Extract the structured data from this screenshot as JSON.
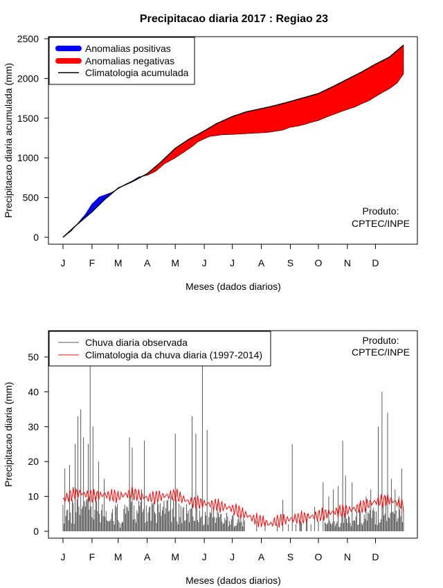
{
  "chart_data": [
    {
      "type": "area",
      "title": "Precipitacao diaria 2017 : Regiao 23",
      "xlabel": "Meses (dados diarios)",
      "ylabel": "Precipitacao diaria acumulada (mm)",
      "xlim": [
        1,
        365
      ],
      "ylim": [
        0,
        2500
      ],
      "xticks": {
        "positions": [
          1,
          32,
          60,
          91,
          121,
          152,
          182,
          213,
          244,
          274,
          305,
          335
        ],
        "labels": [
          "J",
          "F",
          "M",
          "A",
          "M",
          "J",
          "J",
          "A",
          "S",
          "O",
          "N",
          "D"
        ]
      },
      "yticks": [
        0,
        500,
        1000,
        1500,
        2000,
        2500
      ],
      "legend": {
        "position": "top-left",
        "items": [
          {
            "label": "Anomalias positivas",
            "color": "#0000ff",
            "kind": "thick"
          },
          {
            "label": "Anomalias negativas",
            "color": "#ff0000",
            "kind": "thick"
          },
          {
            "label": "Climatologia acumulada",
            "color": "#000000",
            "kind": "line"
          }
        ]
      },
      "annotation": [
        "Produto:",
        "CPTEC/INPE"
      ],
      "climatology_accumulated": {
        "days": [
          1,
          15,
          32,
          45,
          60,
          75,
          91,
          105,
          121,
          135,
          152,
          165,
          182,
          197,
          213,
          228,
          244,
          259,
          274,
          290,
          305,
          320,
          335,
          350,
          365
        ],
        "values": [
          0,
          150,
          320,
          470,
          620,
          700,
          800,
          940,
          1120,
          1230,
          1340,
          1430,
          1520,
          1580,
          1620,
          1660,
          1710,
          1760,
          1810,
          1900,
          1990,
          2080,
          2180,
          2270,
          2420
        ]
      },
      "observed_accumulated": {
        "days": [
          1,
          10,
          20,
          25,
          32,
          40,
          45,
          52,
          60,
          68,
          75,
          82,
          91,
          100,
          110,
          115,
          121,
          130,
          140,
          145,
          152,
          158,
          165,
          170,
          182,
          190,
          197,
          205,
          213,
          220,
          228,
          236,
          244,
          252,
          259,
          266,
          274,
          282,
          290,
          298,
          305,
          313,
          320,
          328,
          335,
          342,
          350,
          358,
          364,
          365
        ],
        "values": [
          0,
          80,
          220,
          290,
          420,
          510,
          530,
          560,
          610,
          670,
          710,
          760,
          780,
          830,
          930,
          960,
          1000,
          1070,
          1150,
          1200,
          1240,
          1270,
          1280,
          1290,
          1295,
          1300,
          1305,
          1310,
          1315,
          1320,
          1335,
          1350,
          1385,
          1400,
          1420,
          1445,
          1470,
          1510,
          1545,
          1580,
          1610,
          1640,
          1680,
          1720,
          1770,
          1820,
          1870,
          1940,
          2040,
          2060
        ]
      }
    },
    {
      "type": "line",
      "xlabel": "Meses (dados diarios)",
      "ylabel": "Precipitacao diaria (mm)",
      "xlim": [
        1,
        365
      ],
      "ylim": [
        0,
        55
      ],
      "xticks": {
        "positions": [
          1,
          32,
          60,
          91,
          121,
          152,
          182,
          213,
          244,
          274,
          305,
          335
        ],
        "labels": [
          "J",
          "F",
          "M",
          "A",
          "M",
          "J",
          "J",
          "A",
          "S",
          "O",
          "N",
          "D"
        ]
      },
      "yticks": [
        0,
        10,
        20,
        30,
        40,
        50
      ],
      "legend": {
        "position": "top-left",
        "items": [
          {
            "label": "Chuva diaria observada",
            "color": "#555555",
            "kind": "line"
          },
          {
            "label": "Climatologia da chuva diaria (1997-2014)",
            "color": "#ff0000",
            "kind": "line"
          }
        ]
      },
      "annotation": [
        "Produto:",
        "CPTEC/INPE"
      ],
      "observed_daily_peaks": {
        "days": [
          3,
          5,
          8,
          11,
          14,
          17,
          20,
          23,
          26,
          28,
          30,
          33,
          36,
          39,
          45,
          50,
          56,
          62,
          68,
          72,
          75,
          80,
          85,
          88,
          95,
          100,
          105,
          110,
          116,
          121,
          125,
          130,
          135,
          139,
          143,
          147,
          150,
          155,
          160,
          166,
          170,
          180,
          195,
          230,
          236,
          242,
          246,
          250,
          262,
          266,
          270,
          274,
          279,
          285,
          290,
          295,
          300,
          303,
          310,
          318,
          325,
          330,
          338,
          342,
          346,
          348,
          352,
          356,
          360,
          363
        ],
        "values": [
          18,
          6,
          19,
          9,
          25,
          33,
          35,
          27,
          9,
          25,
          55,
          30,
          10,
          20,
          15,
          3,
          2,
          1,
          5,
          27,
          24,
          6,
          12,
          26,
          3,
          5,
          8,
          5,
          10,
          28,
          8,
          7,
          6,
          33,
          28,
          6,
          58,
          29,
          7,
          8,
          5,
          2,
          3,
          2,
          9,
          2,
          25,
          2,
          5,
          2,
          7,
          3,
          14,
          10,
          12,
          13,
          26,
          16,
          14,
          8,
          10,
          12,
          30,
          40,
          10,
          34,
          15,
          12,
          10,
          18
        ]
      },
      "climatology_daily": {
        "days": [
          1,
          10,
          20,
          32,
          45,
          60,
          75,
          91,
          105,
          121,
          135,
          152,
          165,
          182,
          195,
          205,
          213,
          222,
          230,
          244,
          260,
          274,
          290,
          305,
          320,
          335,
          350,
          365
        ],
        "values": [
          9,
          10.5,
          11,
          10,
          10.5,
          10,
          11,
          9.5,
          10,
          10.5,
          8.5,
          8,
          7.5,
          6.5,
          5,
          3.5,
          3,
          2,
          3,
          3.5,
          4,
          4.5,
          5.5,
          6,
          7,
          8.5,
          9,
          7.5
        ]
      }
    }
  ]
}
